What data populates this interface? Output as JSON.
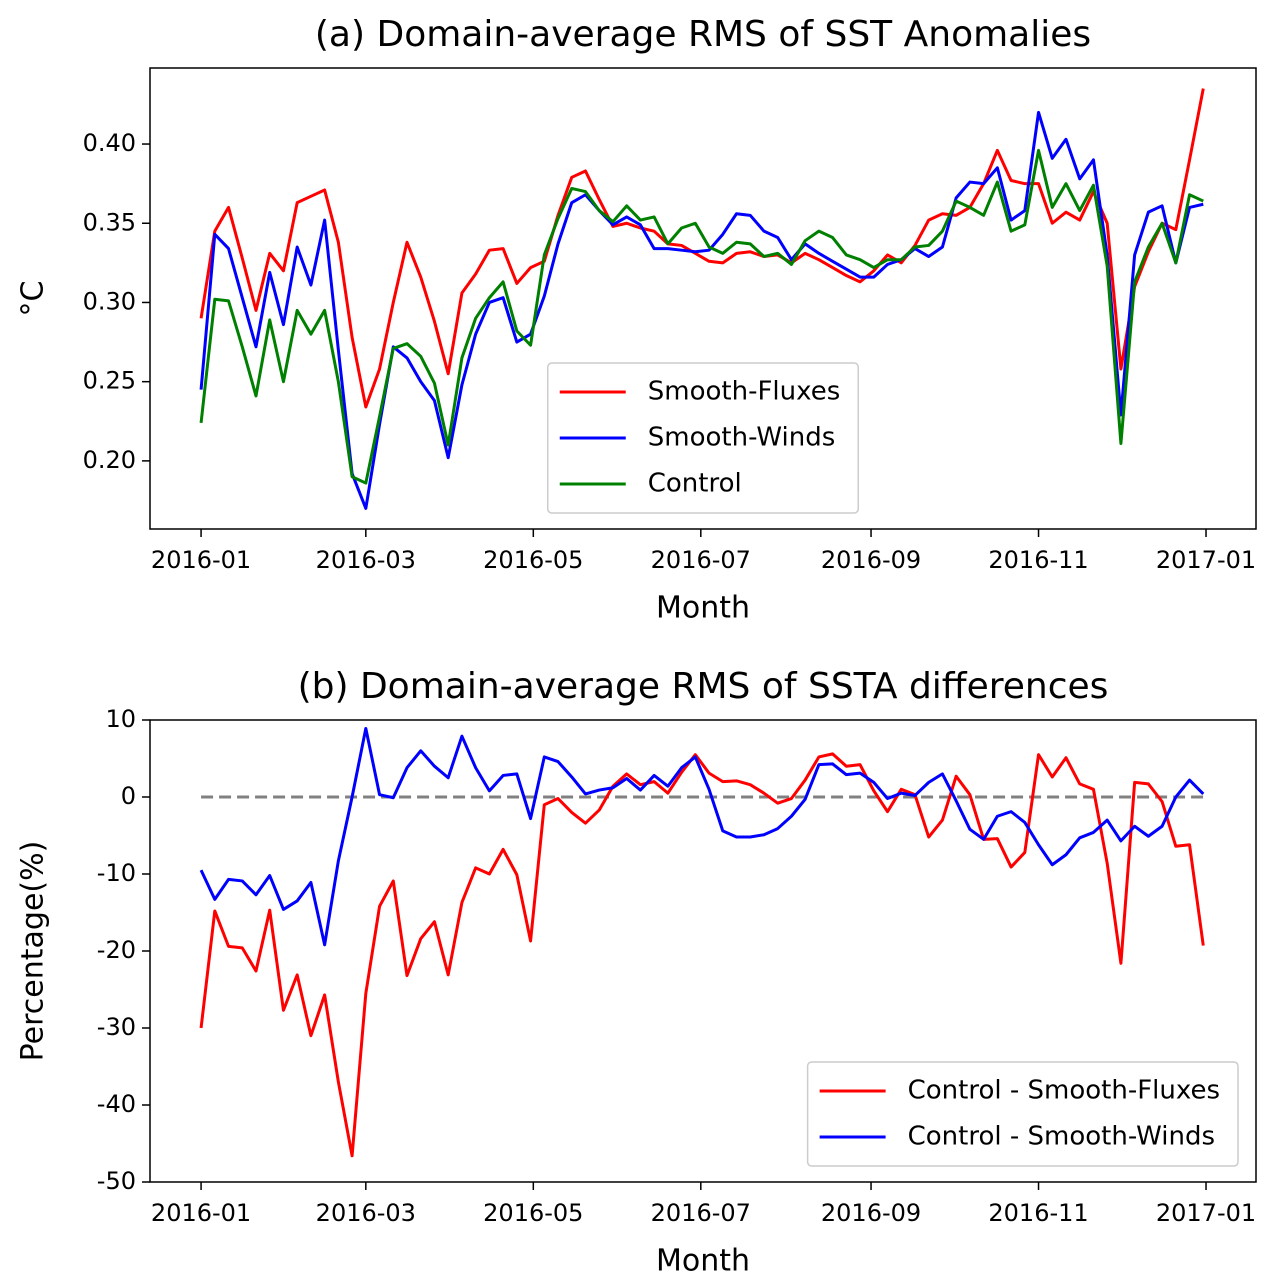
{
  "chart_data": [
    {
      "type": "line",
      "title": "(a) Domain-average RMS of SST Anomalies",
      "xlabel": "Month",
      "ylabel": "°C",
      "x": [
        0,
        5,
        10,
        15,
        20,
        25,
        30,
        35,
        40,
        45,
        50,
        55,
        60,
        65,
        70,
        75,
        80,
        85,
        90,
        95,
        100,
        105,
        110,
        115,
        120,
        125,
        130,
        135,
        140,
        145,
        150,
        155,
        160,
        165,
        170,
        175,
        180,
        185,
        190,
        195,
        200,
        205,
        210,
        215,
        220,
        225,
        230,
        235,
        240,
        245,
        250,
        255,
        260,
        265,
        270,
        275,
        280,
        285,
        290,
        295,
        300,
        305,
        310,
        315,
        320,
        325,
        330,
        335,
        340,
        345,
        350,
        355,
        360,
        365
      ],
      "series": [
        {
          "name": "Smooth-Fluxes",
          "color": "#ff0000",
          "values": [
            0.29,
            0.345,
            0.36,
            0.328,
            0.295,
            0.331,
            0.32,
            0.363,
            0.367,
            0.371,
            0.338,
            0.278,
            0.234,
            0.258,
            0.3,
            0.338,
            0.316,
            0.288,
            0.255,
            0.306,
            0.318,
            0.333,
            0.334,
            0.312,
            0.322,
            0.326,
            0.355,
            0.379,
            0.383,
            0.365,
            0.348,
            0.35,
            0.347,
            0.345,
            0.337,
            0.336,
            0.331,
            0.326,
            0.325,
            0.331,
            0.332,
            0.329,
            0.33,
            0.325,
            0.331,
            0.327,
            0.322,
            0.317,
            0.313,
            0.32,
            0.33,
            0.325,
            0.336,
            0.352,
            0.356,
            0.355,
            0.36,
            0.375,
            0.396,
            0.377,
            0.375,
            0.375,
            0.35,
            0.357,
            0.352,
            0.37,
            0.35,
            0.258,
            0.31,
            0.332,
            0.35,
            0.346,
            0.39,
            0.435
          ]
        },
        {
          "name": "Smooth-Winds",
          "color": "#0000ff",
          "values": [
            0.245,
            0.343,
            0.334,
            0.303,
            0.272,
            0.319,
            0.286,
            0.335,
            0.311,
            0.352,
            0.27,
            0.192,
            0.17,
            0.223,
            0.272,
            0.265,
            0.25,
            0.238,
            0.202,
            0.248,
            0.28,
            0.3,
            0.303,
            0.275,
            0.28,
            0.304,
            0.337,
            0.363,
            0.368,
            0.358,
            0.349,
            0.354,
            0.349,
            0.334,
            0.334,
            0.333,
            0.332,
            0.333,
            0.343,
            0.356,
            0.355,
            0.345,
            0.341,
            0.327,
            0.337,
            0.331,
            0.326,
            0.321,
            0.316,
            0.316,
            0.324,
            0.327,
            0.334,
            0.329,
            0.335,
            0.366,
            0.376,
            0.375,
            0.385,
            0.352,
            0.358,
            0.42,
            0.391,
            0.403,
            0.378,
            0.39,
            0.33,
            0.229,
            0.33,
            0.357,
            0.361,
            0.325,
            0.36,
            0.362
          ]
        },
        {
          "name": "Control",
          "color": "#008000",
          "values": [
            0.224,
            0.302,
            0.301,
            0.272,
            0.241,
            0.289,
            0.25,
            0.295,
            0.28,
            0.295,
            0.25,
            0.19,
            0.186,
            0.228,
            0.271,
            0.274,
            0.266,
            0.249,
            0.21,
            0.265,
            0.29,
            0.303,
            0.313,
            0.282,
            0.273,
            0.33,
            0.353,
            0.372,
            0.37,
            0.358,
            0.351,
            0.361,
            0.352,
            0.354,
            0.337,
            0.347,
            0.35,
            0.335,
            0.331,
            0.338,
            0.337,
            0.329,
            0.331,
            0.324,
            0.339,
            0.345,
            0.341,
            0.33,
            0.327,
            0.322,
            0.327,
            0.327,
            0.335,
            0.336,
            0.345,
            0.364,
            0.36,
            0.355,
            0.376,
            0.345,
            0.349,
            0.396,
            0.36,
            0.375,
            0.358,
            0.374,
            0.323,
            0.211,
            0.313,
            0.335,
            0.35,
            0.325,
            0.368,
            0.364
          ]
        }
      ],
      "xlim": [
        -18.6,
        384.2
      ],
      "xticks": [
        {
          "value": 0,
          "label": "2016-01"
        },
        {
          "value": 60,
          "label": "2016-03"
        },
        {
          "value": 121,
          "label": "2016-05"
        },
        {
          "value": 182,
          "label": "2016-07"
        },
        {
          "value": 244,
          "label": "2016-09"
        },
        {
          "value": 305,
          "label": "2016-11"
        },
        {
          "value": 366,
          "label": "2017-01"
        }
      ],
      "ylim": [
        0.157,
        0.448
      ],
      "yticks": [
        {
          "value": 0.2,
          "label": "0.20"
        },
        {
          "value": 0.25,
          "label": "0.25"
        },
        {
          "value": 0.3,
          "label": "0.30"
        },
        {
          "value": 0.35,
          "label": "0.35"
        },
        {
          "value": 0.4,
          "label": "0.40"
        }
      ],
      "legend": "lower center"
    },
    {
      "type": "line",
      "title": "(b) Domain-average RMS of SSTA differences",
      "xlabel": "Month",
      "ylabel": "Percentage(%)",
      "x": [
        0,
        5,
        10,
        15,
        20,
        25,
        30,
        35,
        40,
        45,
        50,
        55,
        60,
        65,
        70,
        75,
        80,
        85,
        90,
        95,
        100,
        105,
        110,
        115,
        120,
        125,
        130,
        135,
        140,
        145,
        150,
        155,
        160,
        165,
        170,
        175,
        180,
        185,
        190,
        195,
        200,
        205,
        210,
        215,
        220,
        225,
        230,
        235,
        240,
        245,
        250,
        255,
        260,
        265,
        270,
        275,
        280,
        285,
        290,
        295,
        300,
        305,
        310,
        315,
        320,
        325,
        330,
        335,
        340,
        345,
        350,
        355,
        360,
        365
      ],
      "series": [
        {
          "name": "Control - Smooth-Fluxes",
          "color": "#ff0000",
          "values": [
            -30,
            -14.8,
            -19.4,
            -19.6,
            -22.6,
            -14.7,
            -27.7,
            -23.1,
            -31,
            -25.7,
            -37,
            -46.6,
            -25.5,
            -14.2,
            -10.9,
            -23.2,
            -18.4,
            -16.2,
            -23.1,
            -13.7,
            -9.2,
            -10,
            -6.8,
            -10.1,
            -18.7,
            -1,
            -0.2,
            -2,
            -3.4,
            -1.7,
            1.4,
            3,
            1.6,
            2,
            0.5,
            3.2,
            5.5,
            3.1,
            2,
            2.1,
            1.6,
            0.5,
            -0.8,
            -0.2,
            2.2,
            5.2,
            5.6,
            4,
            4.2,
            0.8,
            -1.9,
            1,
            0.3,
            -5.2,
            -3,
            2.7,
            0.3,
            -5.5,
            -5.4,
            -9.1,
            -7.2,
            5.5,
            2.6,
            5.1,
            1.7,
            1,
            -8.6,
            -21.6,
            1.9,
            1.7,
            -0.6,
            -6.4,
            -6.2,
            -19.3
          ]
        },
        {
          "name": "Control - Smooth-Winds",
          "color": "#0000ff",
          "values": [
            -9.5,
            -13.3,
            -10.7,
            -10.9,
            -12.7,
            -10.2,
            -14.6,
            -13.5,
            -11.1,
            -19.2,
            -8.3,
            0,
            8.9,
            0.3,
            -0.1,
            3.8,
            6,
            4,
            2.5,
            7.9,
            3.8,
            0.8,
            2.8,
            3,
            -2.8,
            5.2,
            4.6,
            2.6,
            0.4,
            0.9,
            1.2,
            2.4,
            0.9,
            2.8,
            1.4,
            3.8,
            5.2,
            1,
            -4.4,
            -5.2,
            -5.2,
            -4.9,
            -4.1,
            -2.5,
            -0.3,
            4.2,
            4.3,
            2.9,
            3.1,
            1.9,
            -0.2,
            0.5,
            0.2,
            1.9,
            3,
            -0.5,
            -4.2,
            -5.5,
            -2.5,
            -1.9,
            -3.3,
            -6.2,
            -8.8,
            -7.5,
            -5.3,
            -4.6,
            -3,
            -5.7,
            -3.8,
            -5.1,
            -3.8,
            0,
            2.2,
            0.4
          ]
        }
      ],
      "hline": {
        "value": 0,
        "color": "#808080",
        "dashed": true
      },
      "xlim": [
        -18.6,
        384.2
      ],
      "xticks": [
        {
          "value": 0,
          "label": "2016-01"
        },
        {
          "value": 60,
          "label": "2016-03"
        },
        {
          "value": 121,
          "label": "2016-05"
        },
        {
          "value": 182,
          "label": "2016-07"
        },
        {
          "value": 244,
          "label": "2016-09"
        },
        {
          "value": 305,
          "label": "2016-11"
        },
        {
          "value": 366,
          "label": "2017-01"
        }
      ],
      "ylim": [
        -50,
        10
      ],
      "yticks": [
        -50,
        -40,
        -30,
        -20,
        -10,
        0,
        10
      ],
      "legend": "lower right"
    }
  ]
}
